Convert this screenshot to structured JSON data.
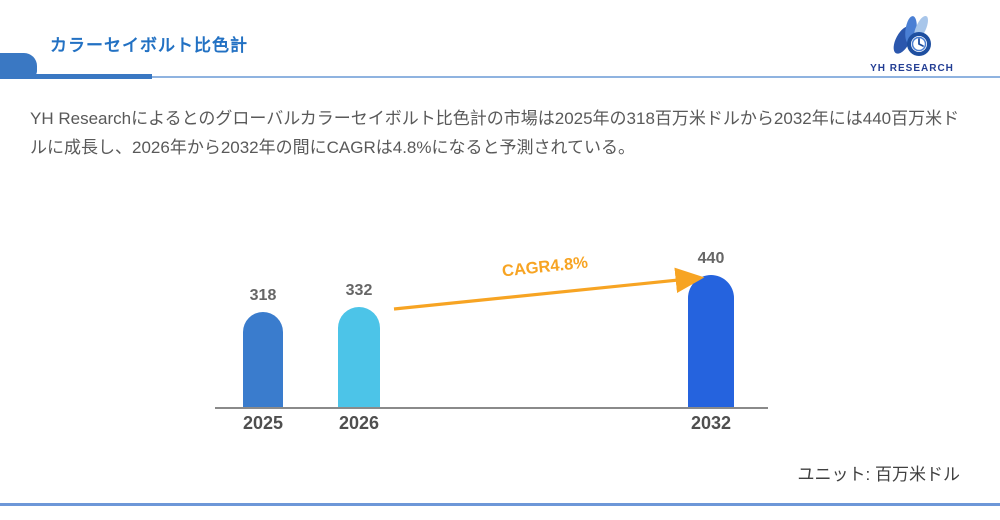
{
  "header": {
    "title": "カラーセイボルト比色計",
    "logo": {
      "name": "YH RESEARCH"
    }
  },
  "summary": "YH Researchによるとのグローバルカラーセイボルト比色計の市場は2025年の318百万米ドルから2032年には440百万米ドルに成長し、2026年から2032年の間にCAGRは4.8%になると予測されている。",
  "chart_data": {
    "type": "bar",
    "title": "",
    "categories": [
      "2025",
      "2026",
      "2032"
    ],
    "values": [
      318,
      332,
      440
    ],
    "annotation": "CAGR4.8%",
    "unit_note": "ユニット: 百万米ドル",
    "xlabel": "",
    "ylabel": "",
    "ylim": [
      0,
      470
    ],
    "grid": false,
    "legend": false,
    "bar_colors": [
      "#3a7ccd",
      "#4cc4e8",
      "#2563de"
    ],
    "arrow_color": "#f7a423",
    "accent_blue": "#2271c3"
  }
}
